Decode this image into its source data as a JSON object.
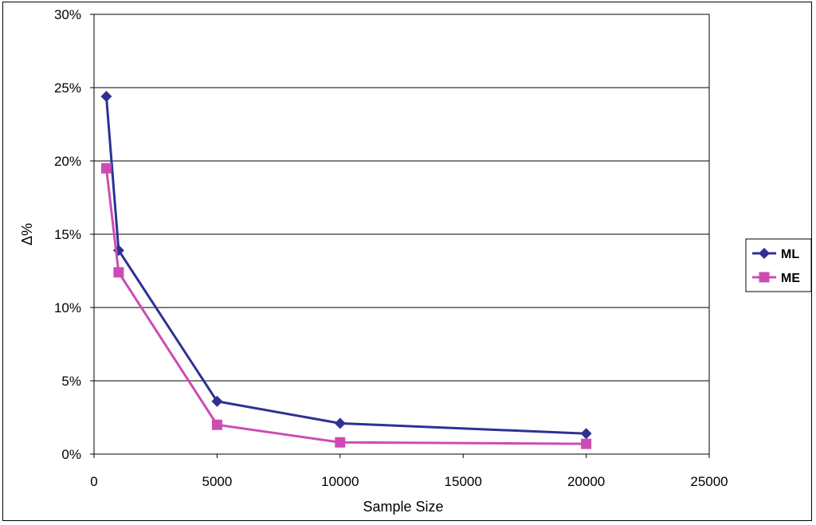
{
  "chart_data": {
    "type": "line",
    "title": "",
    "xlabel": "Sample Size",
    "ylabel": "Δ%",
    "xlim": [
      0,
      25000
    ],
    "ylim": [
      0,
      30
    ],
    "x_ticks": [
      0,
      5000,
      10000,
      15000,
      20000,
      25000
    ],
    "x_tick_labels": [
      "0",
      "5000",
      "10000",
      "15000",
      "20000",
      "25000"
    ],
    "y_ticks": [
      0,
      5,
      10,
      15,
      20,
      25,
      30
    ],
    "y_tick_labels": [
      "0%",
      "5%",
      "10%",
      "15%",
      "20%",
      "25%",
      "30%"
    ],
    "grid": "horizontal",
    "legend_position": "right",
    "series": [
      {
        "name": "ML",
        "marker": "diamond",
        "color": "#2E3192",
        "x": [
          500,
          1000,
          5000,
          10000,
          20000
        ],
        "y": [
          24.4,
          13.9,
          3.6,
          2.1,
          1.4
        ]
      },
      {
        "name": "ME",
        "marker": "square",
        "color": "#CC4CB4",
        "x": [
          500,
          1000,
          5000,
          10000,
          20000
        ],
        "y": [
          19.5,
          12.4,
          2.0,
          0.8,
          0.7
        ]
      }
    ]
  }
}
